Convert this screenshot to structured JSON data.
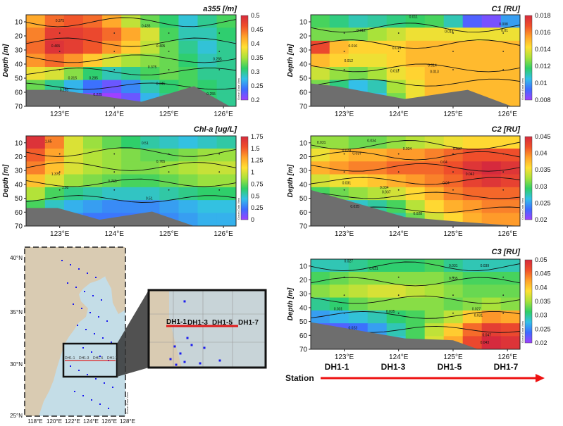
{
  "colorscale": [
    "#9f40ff",
    "#3d6bff",
    "#33c0e8",
    "#2fcf66",
    "#a9e23a",
    "#ffe033",
    "#ffa12a",
    "#f0502a",
    "#d62a3d"
  ],
  "watermark": "Ocean Data View",
  "chart_data": [
    {
      "type": "heatmap",
      "title": "a355 [/m]",
      "ylabel": "Depth [m]",
      "xticks": [
        "123°E",
        "124°E",
        "125°E",
        "126°E"
      ],
      "yticks": [
        10,
        20,
        30,
        40,
        50,
        60,
        70
      ],
      "ylim": [
        70,
        5
      ],
      "cbar_ticks": [
        "0.5",
        "0.45",
        "0.4",
        "0.35",
        "0.3",
        "0.25",
        "0.2"
      ],
      "cbar_range": [
        0.2,
        0.5
      ],
      "contour_labels": [
        "0.375",
        "0.465",
        "0.435",
        "0.405",
        "0.375",
        "0.315",
        "0.345",
        "0.285",
        "0.255",
        "0.225",
        "0.285",
        "0.255"
      ],
      "grid": [
        [
          0.42,
          0.45,
          0.46,
          0.45,
          0.42,
          0.36,
          0.33,
          0.31,
          0.28,
          0.3,
          0.32
        ],
        [
          0.44,
          0.48,
          0.48,
          0.47,
          0.45,
          0.42,
          0.37,
          0.32,
          0.29,
          0.29,
          0.31
        ],
        [
          0.45,
          0.49,
          0.48,
          0.46,
          0.43,
          0.4,
          0.36,
          0.33,
          0.3,
          0.28,
          0.3
        ],
        [
          0.43,
          0.45,
          0.43,
          0.4,
          0.37,
          0.35,
          0.34,
          0.33,
          0.31,
          0.29,
          0.3
        ],
        [
          0.38,
          0.37,
          0.34,
          0.31,
          0.29,
          0.3,
          0.32,
          0.33,
          0.32,
          0.3,
          0.3
        ],
        [
          0.33,
          0.3,
          0.27,
          0.24,
          0.22,
          0.25,
          0.29,
          0.31,
          0.32,
          0.31,
          0.3
        ],
        [
          0.3,
          0.26,
          0.23,
          0.21,
          0.2,
          0.22,
          0.27,
          0.3,
          0.31,
          0.31,
          0.3
        ]
      ]
    },
    {
      "type": "heatmap",
      "title": "C1 [RU]",
      "ylabel": "Depth [m]",
      "xticks": [
        "123°E",
        "124°E",
        "125°E",
        "126°E"
      ],
      "yticks": [
        10,
        20,
        30,
        40,
        50,
        60,
        70
      ],
      "ylim": [
        70,
        5
      ],
      "cbar_ticks": [
        "0.018",
        "0.016",
        "0.014",
        "0.012",
        "0.01",
        "0.008"
      ],
      "cbar_range": [
        0.008,
        0.018
      ],
      "contour_labels": [
        "0.011",
        "0.012",
        "0.014",
        "0.016",
        "0.015",
        "0.013",
        "0.014",
        "0.013",
        "0.012",
        "0.008",
        "0.01"
      ],
      "grid": [
        [
          0.012,
          0.0115,
          0.011,
          0.0112,
          0.0115,
          0.0118,
          0.012,
          0.011,
          0.009,
          0.0085,
          0.01
        ],
        [
          0.0125,
          0.0125,
          0.0125,
          0.013,
          0.0135,
          0.014,
          0.014,
          0.014,
          0.014,
          0.014,
          0.014
        ],
        [
          0.017,
          0.015,
          0.0145,
          0.0145,
          0.0145,
          0.015,
          0.015,
          0.015,
          0.015,
          0.015,
          0.015
        ],
        [
          0.015,
          0.0145,
          0.014,
          0.014,
          0.0145,
          0.015,
          0.015,
          0.015,
          0.015,
          0.015,
          0.015
        ],
        [
          0.0135,
          0.0128,
          0.0125,
          0.013,
          0.014,
          0.0145,
          0.015,
          0.015,
          0.015,
          0.015,
          0.015
        ],
        [
          0.0125,
          0.0115,
          0.0105,
          0.011,
          0.013,
          0.014,
          0.015,
          0.015,
          0.015,
          0.015,
          0.015
        ],
        [
          0.012,
          0.0105,
          0.01,
          0.0105,
          0.0125,
          0.014,
          0.015,
          0.015,
          0.015,
          0.015,
          0.015
        ]
      ]
    },
    {
      "type": "heatmap",
      "title": "Chl-a [ug/L]",
      "ylabel": "Depth [m]",
      "xticks": [
        "123°E",
        "124°E",
        "125°E",
        "126°E"
      ],
      "yticks": [
        10,
        20,
        30,
        40,
        50,
        60,
        70
      ],
      "ylim": [
        70,
        5
      ],
      "cbar_ticks": [
        "1.75",
        "1.5",
        "1.25",
        "1",
        "0.75",
        "0.5",
        "0.25",
        "0"
      ],
      "cbar_range": [
        0,
        1.75
      ],
      "contour_labels": [
        "1.65",
        "0.51",
        "1.375",
        "0.765",
        "0.765",
        "1.02",
        "0.51"
      ],
      "grid": [
        [
          1.7,
          1.4,
          1.0,
          0.85,
          0.75,
          0.65,
          0.55,
          0.5,
          0.45,
          0.5,
          0.55
        ],
        [
          1.5,
          1.3,
          1.0,
          0.9,
          0.85,
          0.8,
          0.75,
          0.75,
          0.8,
          0.85,
          0.85
        ],
        [
          1.4,
          1.2,
          1.0,
          0.9,
          0.85,
          0.8,
          0.8,
          0.85,
          0.9,
          0.95,
          0.95
        ],
        [
          1.2,
          1.0,
          0.85,
          0.8,
          0.75,
          0.7,
          0.7,
          0.75,
          0.8,
          0.85,
          0.85
        ],
        [
          0.9,
          0.7,
          0.6,
          0.55,
          0.5,
          0.5,
          0.5,
          0.55,
          0.6,
          0.65,
          0.65
        ],
        [
          0.7,
          0.5,
          0.4,
          0.35,
          0.3,
          0.3,
          0.3,
          0.35,
          0.4,
          0.45,
          0.45
        ],
        [
          0.6,
          0.4,
          0.3,
          0.25,
          0.25,
          0.25,
          0.25,
          0.3,
          0.35,
          0.4,
          0.4
        ]
      ]
    },
    {
      "type": "heatmap",
      "title": "C2 [RU]",
      "ylabel": "Depth [m]",
      "xticks": [
        "123°E",
        "124°E",
        "125°E",
        "126°E"
      ],
      "yticks": [
        10,
        20,
        30,
        40,
        50,
        60,
        70
      ],
      "ylim": [
        70,
        5
      ],
      "cbar_ticks": [
        "0.045",
        "0.04",
        "0.035",
        "0.03",
        "0.025",
        "0.02"
      ],
      "cbar_range": [
        0.02,
        0.045
      ],
      "contour_labels": [
        "0.031",
        "0.034",
        "0.028",
        "0.034",
        "0.037",
        "0.037",
        "0.04",
        "0.031",
        "0.034",
        "0.037",
        "0.04",
        "0.025",
        "0.028",
        "0.042"
      ],
      "grid": [
        [
          0.032,
          0.032,
          0.031,
          0.031,
          0.032,
          0.033,
          0.034,
          0.035,
          0.036,
          0.036,
          0.036
        ],
        [
          0.035,
          0.037,
          0.038,
          0.038,
          0.039,
          0.039,
          0.04,
          0.041,
          0.042,
          0.042,
          0.042
        ],
        [
          0.038,
          0.039,
          0.04,
          0.04,
          0.041,
          0.041,
          0.041,
          0.042,
          0.044,
          0.045,
          0.044
        ],
        [
          0.034,
          0.035,
          0.036,
          0.037,
          0.038,
          0.039,
          0.04,
          0.041,
          0.043,
          0.044,
          0.043
        ],
        [
          0.03,
          0.031,
          0.032,
          0.033,
          0.034,
          0.036,
          0.038,
          0.04,
          0.041,
          0.041,
          0.041
        ],
        [
          0.026,
          0.026,
          0.027,
          0.028,
          0.03,
          0.033,
          0.036,
          0.038,
          0.039,
          0.04,
          0.04
        ],
        [
          0.024,
          0.024,
          0.025,
          0.026,
          0.028,
          0.031,
          0.034,
          0.036,
          0.038,
          0.039,
          0.039
        ]
      ]
    },
    {
      "type": "heatmap",
      "title": "C3 [RU]",
      "ylabel": "Depth [m]",
      "xticks": [
        "123°E",
        "124°E",
        "125°E",
        "126°E"
      ],
      "yticks": [
        10,
        20,
        30,
        40,
        50,
        60,
        70
      ],
      "ylim": [
        70,
        5
      ],
      "cbar_ticks": [
        "0.05",
        "0.045",
        "0.04",
        "0.035",
        "0.03",
        "0.025",
        "0.02"
      ],
      "cbar_range": [
        0.02,
        0.05
      ],
      "contour_labels": [
        "0.027",
        "0.031",
        "0.035",
        "0.031",
        "0.039",
        "0.031",
        "0.035",
        "0.027",
        "0.031",
        "0.023",
        "0.047",
        "0.043"
      ],
      "grid": [
        [
          0.029,
          0.029,
          0.03,
          0.031,
          0.031,
          0.031,
          0.032,
          0.03,
          0.029,
          0.029,
          0.029
        ],
        [
          0.032,
          0.033,
          0.034,
          0.034,
          0.034,
          0.034,
          0.034,
          0.033,
          0.032,
          0.032,
          0.032
        ],
        [
          0.034,
          0.035,
          0.036,
          0.037,
          0.037,
          0.036,
          0.035,
          0.034,
          0.033,
          0.033,
          0.033
        ],
        [
          0.03,
          0.031,
          0.033,
          0.034,
          0.034,
          0.034,
          0.034,
          0.033,
          0.034,
          0.035,
          0.034
        ],
        [
          0.026,
          0.027,
          0.028,
          0.029,
          0.031,
          0.032,
          0.034,
          0.036,
          0.04,
          0.043,
          0.042
        ],
        [
          0.023,
          0.023,
          0.024,
          0.026,
          0.029,
          0.032,
          0.036,
          0.04,
          0.045,
          0.048,
          0.047
        ],
        [
          0.022,
          0.022,
          0.023,
          0.025,
          0.028,
          0.032,
          0.037,
          0.042,
          0.047,
          0.05,
          0.049
        ]
      ]
    }
  ],
  "map": {
    "lat_ticks": [
      "40°N",
      "35°N",
      "30°N",
      "25°N"
    ],
    "lon_ticks": [
      "118°E",
      "120°E",
      "122°E",
      "124°E",
      "126°E",
      "128°E"
    ],
    "labels": [
      "DH1-1",
      "DH1-3",
      "DH1-5",
      "DH1-7"
    ]
  },
  "inset": {
    "labels": [
      "DH1-1",
      "DH1-3",
      "DH1-5",
      "DH1-7"
    ]
  },
  "station_axis": {
    "label": "Station",
    "stations": [
      "DH1-1",
      "DH1-3",
      "DH1-5",
      "DH1-7"
    ]
  }
}
